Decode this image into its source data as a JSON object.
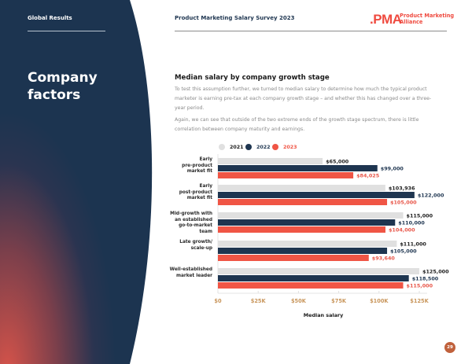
{
  "header": {
    "section": "Global Results",
    "report_title": "Product Marketing Salary Survey 2023",
    "logo_mark": ".PMA",
    "logo_text_line1": "Product Marketing",
    "logo_text_line2": "Alliance"
  },
  "sidebar": {
    "title": "Company factors"
  },
  "content": {
    "paragraph1": "To test this assumption further, we turned to median salary to determine how much the typical product marketer is earning pre-tax at each company growth stage – and whether this has changed over a three-year period.",
    "paragraph2": "Again, we can see that outside of the two extreme ends of the growth stage spectrum, there is little correlation between company maturity and earnings."
  },
  "footer": {
    "page_number": "29"
  },
  "colors": {
    "navy": "#1e3550",
    "accent_red": "#ef4b40",
    "bar_2021": "#e0e0e0",
    "bar_2022": "#1e3550",
    "bar_2023": "#f05545"
  },
  "chart_data": {
    "type": "bar",
    "orientation": "horizontal",
    "title": "Median salary by company growth stage",
    "xlabel": "Median salary",
    "ylabel": "",
    "xlim": [
      0,
      125000
    ],
    "x_ticks": [
      "$0",
      "$25K",
      "$50K",
      "$75K",
      "$100K",
      "$125K"
    ],
    "x_tick_values": [
      0,
      25000,
      50000,
      75000,
      100000,
      125000
    ],
    "legend_position": "top-left",
    "grid": false,
    "categories": [
      "Early pre-product market fit",
      "Early post-product market fit",
      "Mid-growth with an established go-to-market team",
      "Late growth/ scale-up",
      "Well-established market leader"
    ],
    "category_lines": [
      [
        "Early",
        "pre-product",
        "market fit"
      ],
      [
        "Early",
        "post-product",
        "market fit"
      ],
      [
        "Mid-growth with",
        "an established",
        "go-to-market",
        "team"
      ],
      [
        "Late growth/",
        "scale-up"
      ],
      [
        "Well-established",
        "market leader"
      ]
    ],
    "series": [
      {
        "name": "2021",
        "color": "#e0e0e0",
        "label_color": "#1e1e1e",
        "values": [
          65000,
          103936,
          115000,
          111000,
          125000
        ],
        "labels": [
          "$65,000",
          "$103,936",
          "$115,000",
          "$111,000",
          "$125,000"
        ]
      },
      {
        "name": "2022",
        "color": "#1e3550",
        "label_color": "#1e3550",
        "values": [
          99000,
          122000,
          110000,
          105000,
          118500
        ],
        "labels": [
          "$99,000",
          "$122,000",
          "$110,000",
          "$105,000",
          "$118,500"
        ]
      },
      {
        "name": "2023",
        "color": "#f05545",
        "label_color": "#e8574a",
        "values": [
          84025,
          105000,
          104000,
          93640,
          115000
        ],
        "labels": [
          "$84,025",
          "$105,000",
          "$104,000",
          "$93,640",
          "$115,000"
        ]
      }
    ]
  }
}
